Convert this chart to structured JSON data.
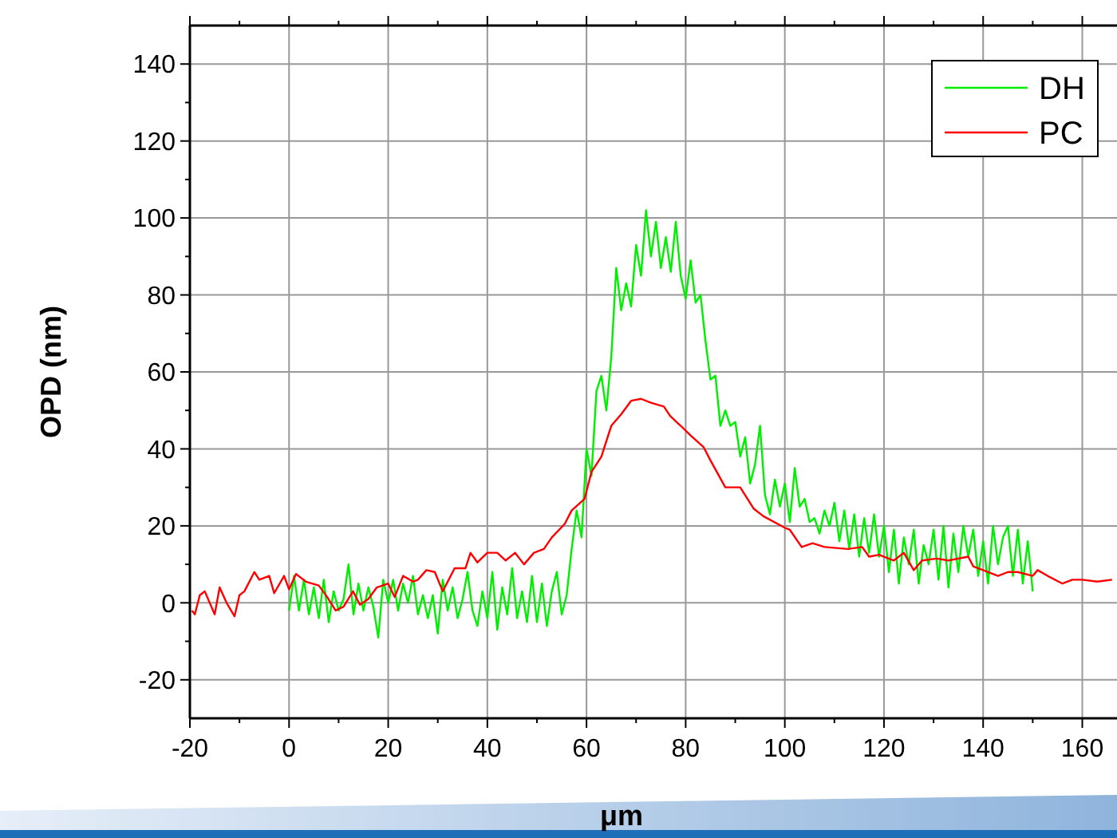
{
  "chart_data": {
    "type": "line",
    "xlabel": "μm",
    "ylabel": "OPD (nm)",
    "xlim": [
      -20,
      167
    ],
    "ylim": [
      -30,
      150
    ],
    "xticks": [
      -20,
      {
        "value": -10,
        "label": null
      },
      0,
      {
        "value": 10,
        "label": null
      },
      20,
      {
        "value": 30,
        "label": null
      },
      40,
      {
        "value": 50,
        "label": null
      },
      60,
      {
        "value": 70,
        "label": null
      },
      80,
      {
        "value": 90,
        "label": null
      },
      100,
      {
        "value": 110,
        "label": null
      },
      120,
      {
        "value": 130,
        "label": null
      },
      140,
      {
        "value": 150,
        "label": null
      },
      160
    ],
    "yticks": [
      -20,
      {
        "value": -10,
        "label": null
      },
      0,
      {
        "value": 10,
        "label": null
      },
      20,
      {
        "value": 30,
        "label": null
      },
      40,
      {
        "value": 50,
        "label": null
      },
      60,
      {
        "value": 70,
        "label": null
      },
      80,
      {
        "value": 90,
        "label": null
      },
      100,
      {
        "value": 110,
        "label": null
      },
      120,
      {
        "value": 130,
        "label": null
      },
      140
    ],
    "grid": true,
    "legend": "top right",
    "marker": "none",
    "line_style": "solid",
    "series": [
      {
        "name": "DH",
        "color": "#00ee00",
        "x": [
          0,
          1,
          2,
          3,
          4,
          5,
          6,
          7,
          8,
          9,
          10,
          11,
          12,
          13,
          14,
          15,
          16,
          17,
          18,
          19,
          20,
          21,
          22,
          23,
          24,
          25,
          26,
          27,
          28,
          29,
          30,
          31,
          32,
          33,
          34,
          35,
          36,
          37,
          38,
          39,
          40,
          41,
          42,
          43,
          44,
          45,
          46,
          47,
          48,
          49,
          50,
          51,
          52,
          53,
          54,
          55,
          56,
          57,
          58,
          59,
          60,
          61,
          62,
          63,
          64,
          65,
          66,
          67,
          68,
          69,
          70,
          71,
          72,
          73,
          74,
          75,
          76,
          77,
          78,
          79,
          80,
          81,
          82,
          83,
          84,
          85,
          86,
          87,
          88,
          89,
          90,
          91,
          92,
          93,
          94,
          95,
          96,
          97,
          98,
          99,
          100,
          101,
          102,
          103,
          104,
          105,
          106,
          107,
          108,
          109,
          110,
          111,
          112,
          113,
          114,
          115,
          116,
          117,
          118,
          119,
          120,
          121,
          122,
          123,
          124,
          125,
          126,
          127,
          128,
          129,
          130,
          131,
          132,
          133,
          134,
          135,
          136,
          137,
          138,
          139,
          140,
          141,
          142,
          143,
          144,
          145,
          146,
          147,
          148,
          149,
          150
        ],
        "values": [
          -2,
          7,
          -2,
          6,
          -3,
          4,
          -4,
          6,
          -5,
          3,
          -2,
          1,
          10,
          -3,
          5,
          -2,
          4,
          -1,
          -9,
          6,
          0,
          6,
          -2,
          5,
          0,
          7,
          -3,
          2,
          -4,
          2,
          -8,
          6,
          -2,
          4,
          -4,
          1,
          8,
          -2,
          -6,
          3,
          -4,
          8,
          -7,
          4,
          -3,
          9,
          -4,
          3,
          -5,
          7,
          -5,
          5,
          -6,
          3,
          8,
          -3,
          2,
          14,
          24,
          17,
          40,
          33,
          55,
          59,
          50,
          64,
          87,
          76,
          83,
          77,
          93,
          85,
          102,
          90,
          99,
          87,
          95,
          86,
          99,
          85,
          79,
          89,
          78,
          80,
          68,
          58,
          59,
          46,
          50,
          46,
          47,
          38,
          43,
          31,
          36,
          46,
          28,
          23,
          32,
          25,
          31,
          21,
          35,
          25,
          27,
          21,
          22,
          18,
          24,
          20,
          26,
          16,
          24,
          14,
          23,
          12,
          22,
          13,
          23,
          12,
          20,
          8,
          19,
          5,
          17,
          10,
          19,
          5,
          15,
          10,
          19,
          6,
          20,
          4,
          18,
          8,
          20,
          12,
          19,
          7,
          16,
          5,
          20,
          10,
          17,
          20,
          7,
          19,
          5,
          16,
          3
        ]
      },
      {
        "name": "PC",
        "color": "#ff0000",
        "x": [
          -19.6,
          -19,
          -18,
          -17,
          -15,
          -14,
          -12.6,
          -11,
          -10,
          -9,
          -7,
          -6,
          -4,
          -3,
          -1,
          0,
          1.4,
          3.4,
          6,
          7.7,
          9.4,
          11,
          12.9,
          14.3,
          16,
          17.7,
          20,
          21.3,
          23,
          25,
          26,
          27.7,
          29.4,
          31,
          33.4,
          35.6,
          36.6,
          38,
          40,
          42,
          43.7,
          45.6,
          47.4,
          49.4,
          51.4,
          53,
          55.6,
          57,
          59.6,
          61,
          63,
          65,
          67,
          69,
          71,
          73,
          75.6,
          76.9,
          79,
          81,
          83.6,
          85,
          88,
          91,
          93.7,
          95.7,
          100,
          101,
          103.4,
          105.6,
          108,
          112.7,
          115.6,
          117,
          119,
          122,
          124,
          126,
          127.7,
          130.6,
          133,
          137,
          138,
          140,
          143,
          145,
          147,
          150,
          151,
          153,
          156,
          158,
          160,
          163,
          166
        ],
        "values": [
          -2,
          -3,
          2,
          3,
          -3,
          4,
          0,
          -3.5,
          2,
          3,
          8,
          6,
          7,
          2.5,
          7,
          3.5,
          7.5,
          5.5,
          4.5,
          1.5,
          -2,
          -1,
          3,
          -0.5,
          1,
          4,
          5,
          1.5,
          7,
          5.5,
          6,
          8.5,
          8,
          3,
          9,
          9,
          13,
          10.5,
          13,
          13,
          11,
          13,
          10,
          13,
          14,
          17,
          20.5,
          24,
          27,
          34,
          38,
          46,
          49,
          52.5,
          53,
          52,
          51,
          48.5,
          46,
          43.5,
          40.5,
          37,
          30,
          30,
          24.5,
          22.5,
          19.5,
          19,
          14.5,
          15.5,
          14.5,
          14,
          14.5,
          12,
          12.5,
          11,
          13,
          8.5,
          11,
          11.5,
          11,
          12,
          9.5,
          8.5,
          7,
          8,
          8,
          7,
          8.5,
          7,
          5,
          6,
          6,
          5.5,
          6
        ]
      }
    ]
  }
}
